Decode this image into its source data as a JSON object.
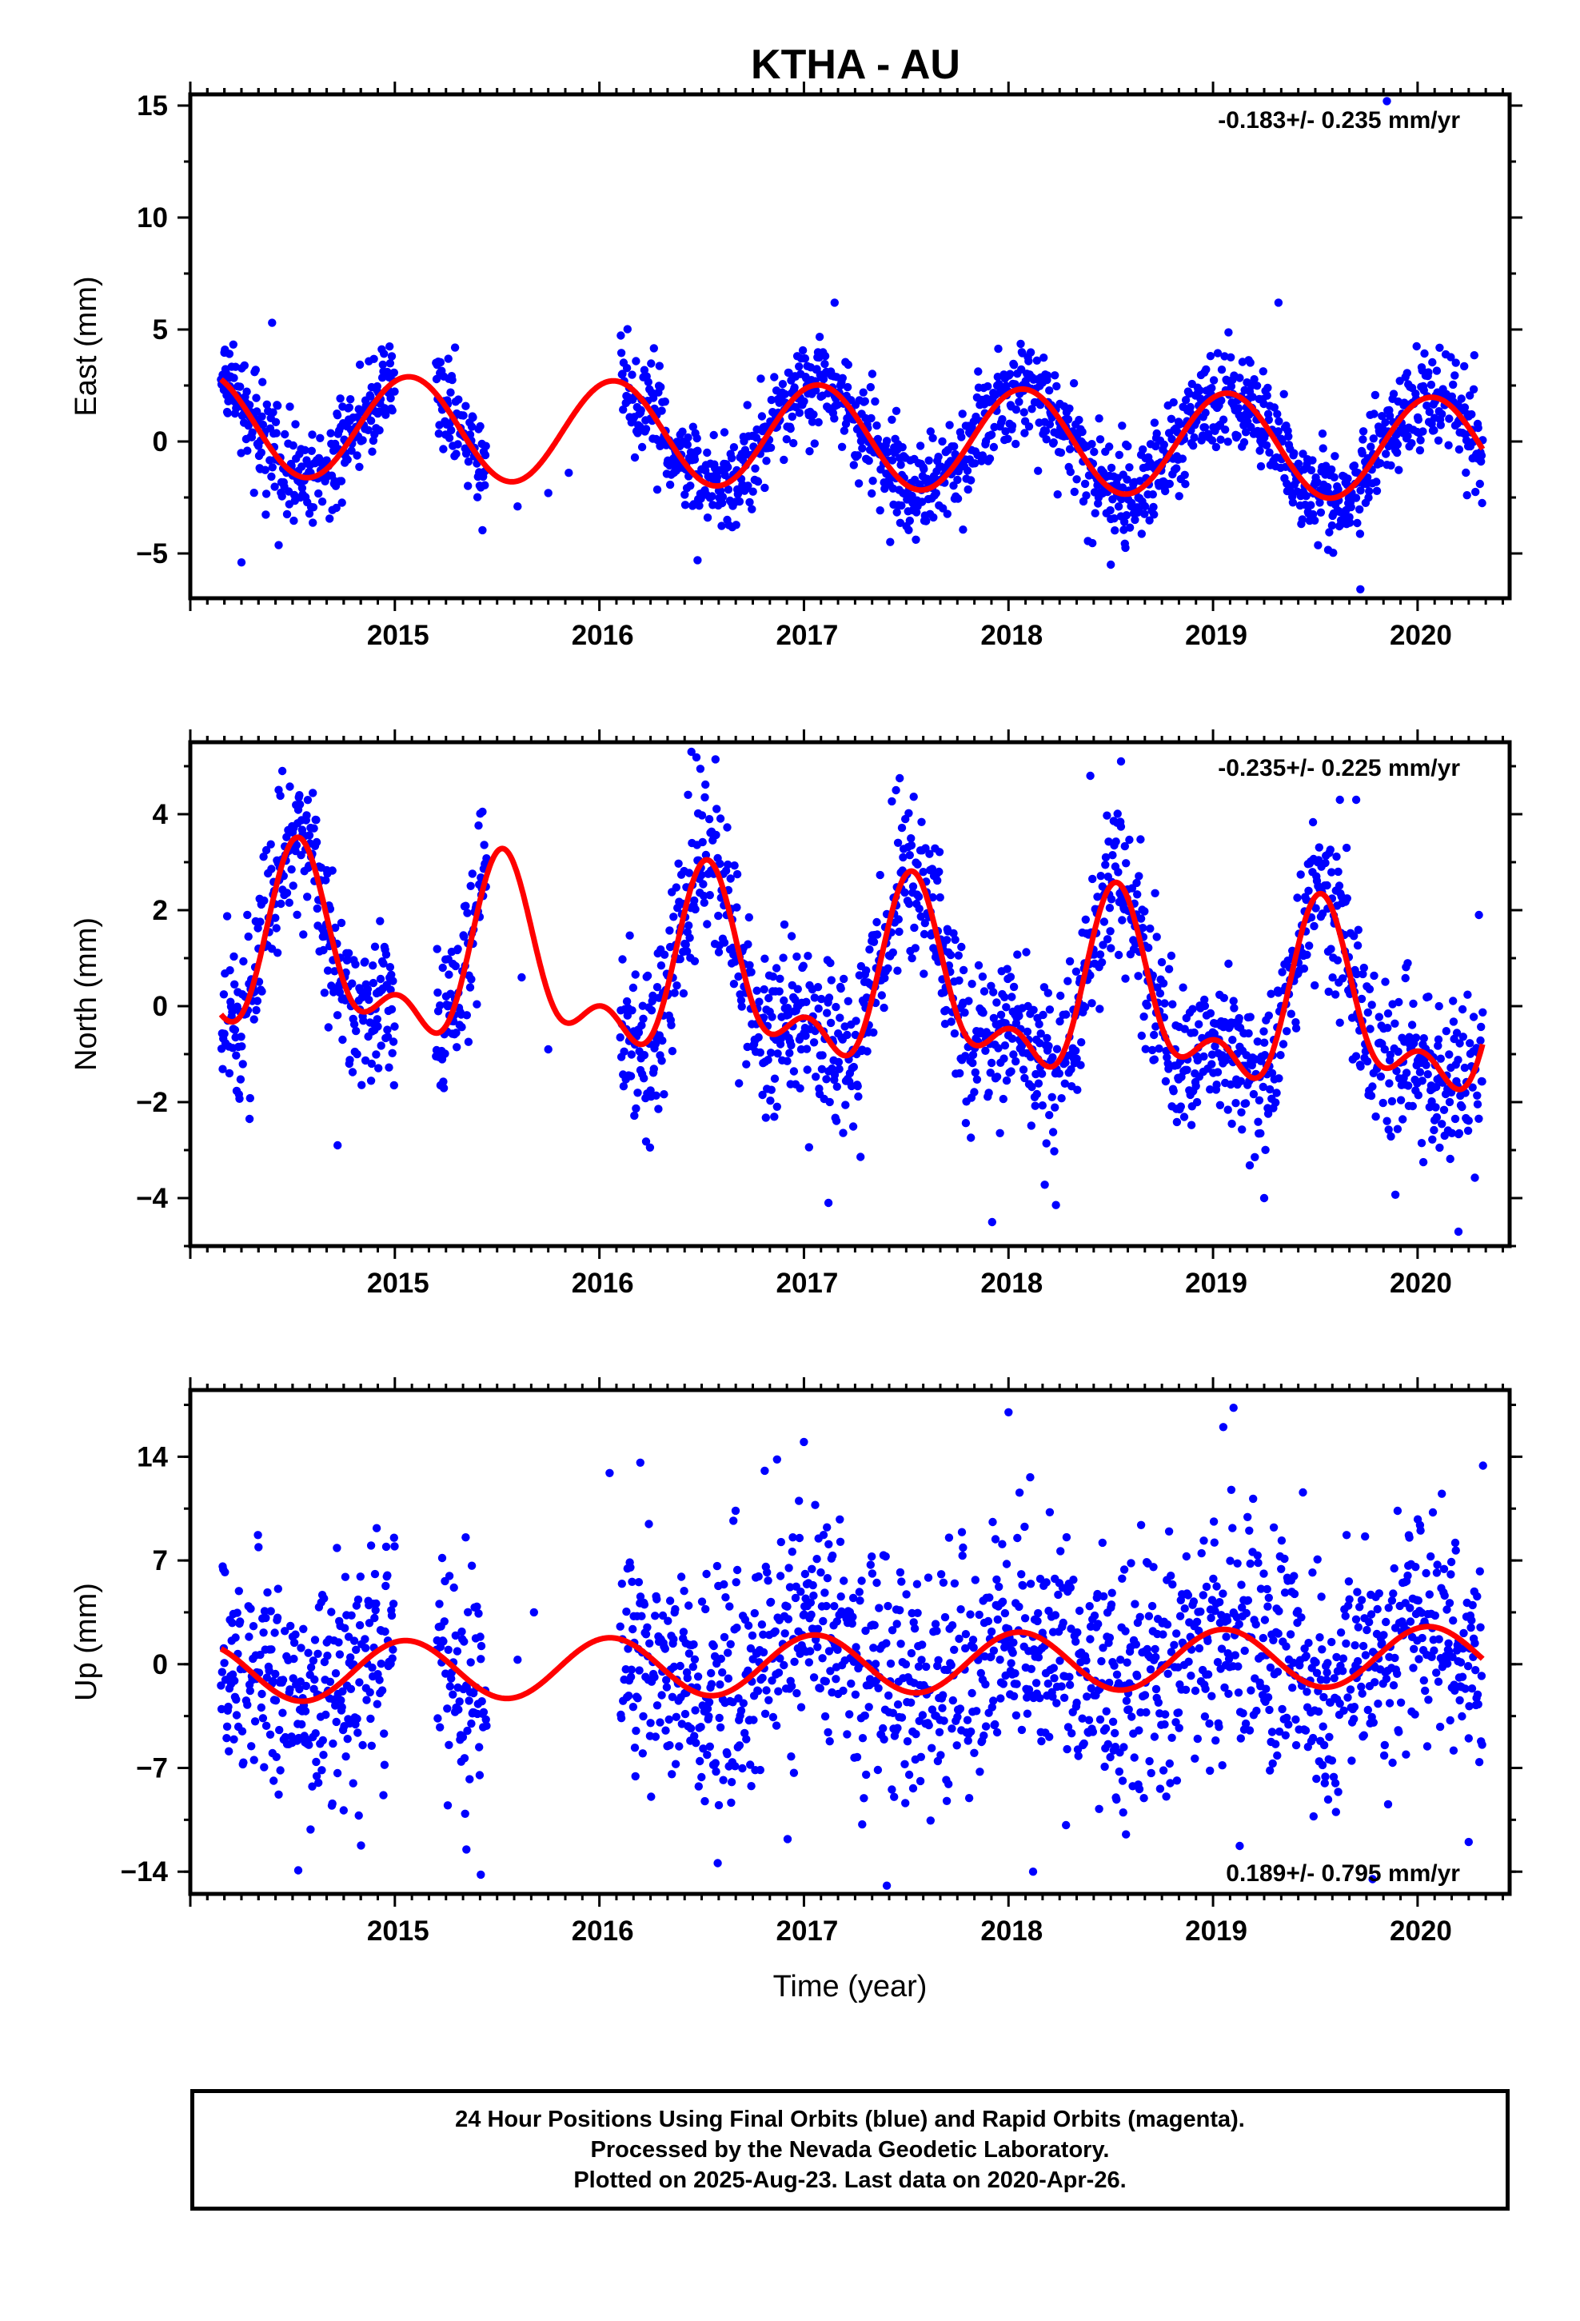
{
  "title": "KTHA - AU",
  "footer": {
    "line1": "24 Hour Positions Using Final Orbits (blue) and Rapid Orbits (magenta).",
    "line2": "Processed by the Nevada Geodetic Laboratory.",
    "line3": "Plotted on 2025-Aug-23. Last data on 2020-Apr-26."
  },
  "colors": {
    "points": "#0000ff",
    "model": "#ff0000",
    "frame": "#000000"
  },
  "chart_data": [
    {
      "type": "scatter",
      "ylabel": "East (mm)",
      "xlabel": "",
      "rate_label": "-0.183+/- 0.235 mm/yr",
      "rate_position": "top-right",
      "xlim": [
        2014.0,
        2020.45
      ],
      "ylim": [
        -7,
        15.5
      ],
      "xticks": [
        2015,
        2016,
        2017,
        2018,
        2019,
        2020
      ],
      "yticks": [
        -5,
        0,
        5,
        10,
        15
      ],
      "model": {
        "offset": 0.2,
        "trend": -0.183,
        "ref_year": 2017.2,
        "ann_amp": 2.3,
        "ann_phase": 2017.07,
        "semi_amp": 0.0,
        "semi_phase": 2017.0
      },
      "scatter_sigma": 1.1,
      "gaps": [
        [
          2015.0,
          2015.2
        ],
        [
          2015.45,
          2016.1
        ]
      ],
      "sparse_points": [
        [
          2015.6,
          -2.9
        ],
        [
          2015.75,
          -2.3
        ],
        [
          2015.85,
          -1.4
        ]
      ],
      "outliers": [
        [
          2014.25,
          -5.4
        ],
        [
          2014.4,
          5.3
        ],
        [
          2016.48,
          -5.3
        ],
        [
          2017.15,
          6.2
        ],
        [
          2018.5,
          -5.5
        ],
        [
          2019.32,
          6.2
        ],
        [
          2019.72,
          -6.6
        ],
        [
          2019.85,
          15.2
        ]
      ],
      "grid": false
    },
    {
      "type": "scatter",
      "ylabel": "North (mm)",
      "xlabel": "",
      "rate_label": "-0.235+/- 0.225 mm/yr",
      "rate_position": "top-right",
      "xlim": [
        2014.0,
        2020.45
      ],
      "ylim": [
        -5,
        5.5
      ],
      "xticks": [
        2015,
        2016,
        2017,
        2018,
        2019,
        2020
      ],
      "yticks": [
        -4,
        -2,
        0,
        2,
        4
      ],
      "model": {
        "offset": 0.4,
        "trend": -0.235,
        "ref_year": 2017.2,
        "ann_amp": 1.6,
        "ann_phase": 2017.54,
        "semi_amp": 0.9,
        "semi_phase": 2017.52
      },
      "scatter_sigma": 0.85,
      "gaps": [
        [
          2015.0,
          2015.2
        ],
        [
          2015.45,
          2016.1
        ]
      ],
      "sparse_points": [
        [
          2015.62,
          0.6
        ],
        [
          2015.75,
          -0.9
        ]
      ],
      "outliers": [
        [
          2014.45,
          4.9
        ],
        [
          2014.72,
          -2.9
        ],
        [
          2016.45,
          5.3
        ],
        [
          2017.12,
          -4.1
        ],
        [
          2017.45,
          4.5
        ],
        [
          2017.92,
          -4.5
        ],
        [
          2018.4,
          4.8
        ],
        [
          2018.55,
          5.1
        ],
        [
          2019.25,
          -4.0
        ],
        [
          2019.62,
          4.3
        ],
        [
          2019.7,
          4.3
        ],
        [
          2020.2,
          -4.7
        ],
        [
          2020.3,
          1.9
        ]
      ],
      "grid": false
    },
    {
      "type": "scatter",
      "ylabel": "Up (mm)",
      "xlabel": "Time (year)",
      "rate_label": "0.189+/- 0.795 mm/yr",
      "rate_position": "bottom-right",
      "xlim": [
        2014.0,
        2020.45
      ],
      "ylim": [
        -15.5,
        18.5
      ],
      "xticks": [
        2015,
        2016,
        2017,
        2018,
        2019,
        2020
      ],
      "yticks": [
        -14,
        -7,
        0,
        7,
        14
      ],
      "model": {
        "offset": 0.0,
        "trend": 0.189,
        "ref_year": 2017.2,
        "ann_amp": 2.0,
        "ann_phase": 2017.05,
        "semi_amp": 0.0,
        "semi_phase": 2017.0
      },
      "scatter_sigma": 4.0,
      "gaps": [
        [
          2015.0,
          2015.2
        ],
        [
          2015.45,
          2016.1
        ]
      ],
      "sparse_points": [
        [
          2015.6,
          0.3
        ],
        [
          2015.68,
          3.5
        ]
      ],
      "outliers": [
        [
          2015.35,
          -12.5
        ],
        [
          2015.42,
          -14.2
        ],
        [
          2016.05,
          12.9
        ],
        [
          2016.2,
          13.6
        ],
        [
          2016.92,
          -11.8
        ],
        [
          2017.0,
          15.0
        ],
        [
          2018.0,
          17.0
        ],
        [
          2018.12,
          -14.0
        ],
        [
          2019.1,
          17.3
        ],
        [
          2019.05,
          16.0
        ],
        [
          2019.78,
          -14.5
        ],
        [
          2020.25,
          -12.0
        ],
        [
          2020.32,
          13.4
        ]
      ],
      "grid": false
    }
  ]
}
